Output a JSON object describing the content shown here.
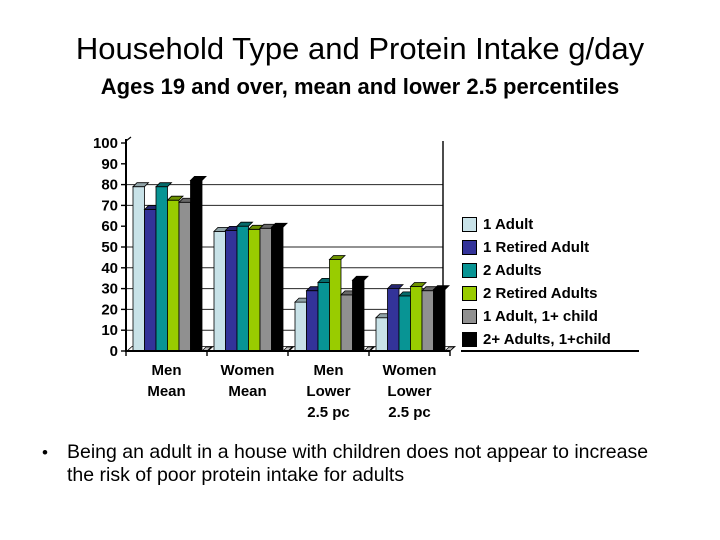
{
  "slide": {
    "title": "Household Type and Protein Intake g/day",
    "subtitle": "Ages 19 and over, mean and lower 2.5 percentiles",
    "bullet_marker": "•",
    "bullet_lines": [
      "Being an adult in a house with children does not appear to increase",
      "the risk of poor protein intake for adults"
    ]
  },
  "chart_data": {
    "type": "bar",
    "style": "3d-column",
    "title": "",
    "xlabel": "",
    "ylabel": "",
    "categories": [
      "Men Mean",
      "Women Mean",
      "Men Lower 2.5 pc",
      "Women Lower 2.5 pc"
    ],
    "category_label_lines": [
      [
        "Men",
        "Mean"
      ],
      [
        "Women",
        "Mean"
      ],
      [
        "Men",
        "Lower",
        "2.5 pc"
      ],
      [
        "Women",
        "Lower",
        "2.5 pc"
      ]
    ],
    "series": [
      {
        "name": "1 Adult",
        "color": "#c8e2e8",
        "values": [
          79,
          57.5,
          23.5,
          16
        ]
      },
      {
        "name": "1 Retired Adult",
        "color": "#333399",
        "values": [
          68,
          58,
          29,
          30
        ]
      },
      {
        "name": "2 Adults",
        "color": "#089494",
        "values": [
          79,
          60,
          33,
          26.5
        ]
      },
      {
        "name": "2 Retired Adults",
        "color": "#99cc00",
        "values": [
          72.5,
          58.5,
          44,
          31
        ]
      },
      {
        "name": "1 Adult, 1+ child",
        "color": "#909090",
        "values": [
          71.5,
          59,
          27,
          29
        ]
      },
      {
        "name": "2+ Adults, 1+child",
        "color": "#000000",
        "values": [
          82,
          59.5,
          34,
          29.5
        ]
      }
    ],
    "ylim": [
      0,
      100
    ],
    "yticks": [
      0,
      10,
      20,
      30,
      40,
      50,
      60,
      70,
      80,
      90,
      100
    ],
    "visible_gridlines": [
      10,
      20,
      30,
      40,
      50,
      70,
      80
    ],
    "grid": true,
    "legend_position": "right",
    "axis_color": "#000000",
    "gridline_color": "#262626",
    "floor_color": "#ffffff",
    "floor_shadow_color": "#bdbdbd"
  }
}
